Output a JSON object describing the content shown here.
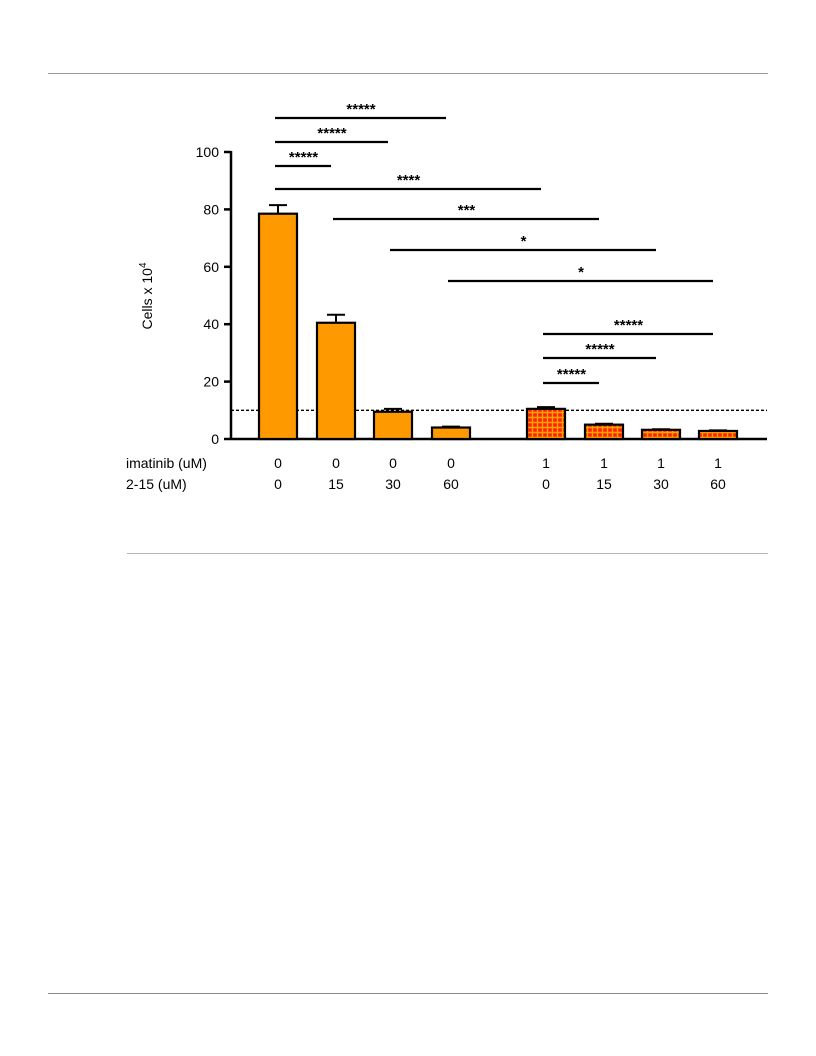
{
  "chart_data": {
    "type": "bar",
    "ylabel": "Cells x 10",
    "ylabel_superscript": "4",
    "ylim": [
      0,
      100
    ],
    "yticks": [
      0,
      20,
      40,
      60,
      80,
      100
    ],
    "threshold_line": 10,
    "row_labels": [
      "imatinib (uM)",
      "2-15 (uM)"
    ],
    "groups": [
      {
        "imatinib": "0",
        "dose": "0",
        "value": 78.5,
        "error": 3
      },
      {
        "imatinib": "0",
        "dose": "15",
        "value": 40.5,
        "error": 2.8
      },
      {
        "imatinib": "0",
        "dose": "30",
        "value": 9.5,
        "error": 1
      },
      {
        "imatinib": "0",
        "dose": "60",
        "value": 4,
        "error": 0.3
      },
      {
        "imatinib": "1",
        "dose": "0",
        "value": 10.5,
        "error": 0.6
      },
      {
        "imatinib": "1",
        "dose": "15",
        "value": 5,
        "error": 0.3
      },
      {
        "imatinib": "1",
        "dose": "30",
        "value": 3.2,
        "error": 0.2
      },
      {
        "imatinib": "1",
        "dose": "60",
        "value": 2.8,
        "error": 0.2
      }
    ],
    "fill_colors": {
      "plain": "#ff9900",
      "hatched_base": "#ff2200",
      "hatched_grid": "#ffa500"
    },
    "significance": [
      {
        "from": 0,
        "to": 3,
        "stars": "*****"
      },
      {
        "from": 0,
        "to": 2,
        "stars": "*****"
      },
      {
        "from": 0,
        "to": 1,
        "stars": "*****"
      },
      {
        "from": 0,
        "to": 4,
        "stars": "****"
      },
      {
        "from": 1,
        "to": 5,
        "stars": "***"
      },
      {
        "from": 2,
        "to": 6,
        "stars": "*"
      },
      {
        "from": 3,
        "to": 7,
        "stars": "*"
      },
      {
        "from": 4,
        "to": 7,
        "stars": "*****"
      },
      {
        "from": 4,
        "to": 6,
        "stars": "*****"
      },
      {
        "from": 4,
        "to": 5,
        "stars": "*****"
      }
    ]
  }
}
